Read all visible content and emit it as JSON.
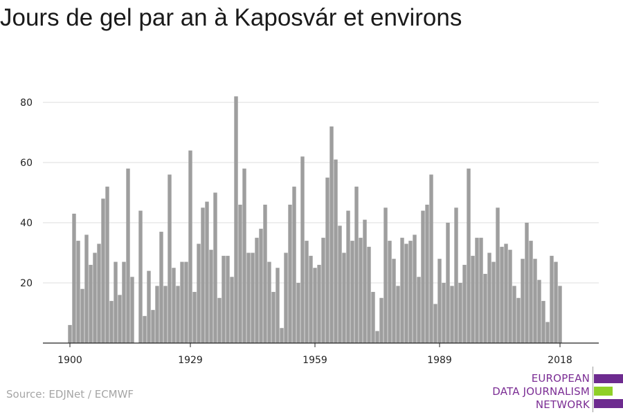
{
  "title": "Jours de gel par an à Kaposvár et environs",
  "source": "Source: EDJNet / ECMWF",
  "logo": {
    "lines": [
      "EUROPEAN",
      "DATA JOURNALISM",
      "NETWORK"
    ],
    "text_color": "#7b2d94",
    "bar_colors": [
      "#6d2b8f",
      "#8fd028",
      "#6d2b8f"
    ]
  },
  "colors": {
    "bar": "#9e9e9e",
    "grid": "#dedede",
    "axis": "#222222"
  },
  "chart_data": {
    "type": "bar",
    "title": "Jours de gel par an à Kaposvár et environs",
    "xlabel": "",
    "ylabel": "",
    "x_ticks": [
      1900,
      1929,
      1959,
      1989,
      2018
    ],
    "y_ticks": [
      20,
      40,
      60,
      80
    ],
    "ylim": [
      0,
      87
    ],
    "grid": true,
    "years": [
      1900,
      1901,
      1902,
      1903,
      1904,
      1905,
      1906,
      1907,
      1908,
      1909,
      1910,
      1911,
      1912,
      1913,
      1914,
      1915,
      1916,
      1917,
      1918,
      1919,
      1920,
      1921,
      1922,
      1923,
      1924,
      1925,
      1926,
      1927,
      1928,
      1929,
      1930,
      1931,
      1932,
      1933,
      1934,
      1935,
      1936,
      1937,
      1938,
      1939,
      1940,
      1941,
      1942,
      1943,
      1944,
      1945,
      1946,
      1947,
      1948,
      1949,
      1950,
      1951,
      1952,
      1953,
      1954,
      1955,
      1956,
      1957,
      1958,
      1959,
      1960,
      1961,
      1962,
      1963,
      1964,
      1965,
      1966,
      1967,
      1968,
      1969,
      1970,
      1971,
      1972,
      1973,
      1974,
      1975,
      1976,
      1977,
      1978,
      1979,
      1980,
      1981,
      1982,
      1983,
      1984,
      1985,
      1986,
      1987,
      1988,
      1989,
      1990,
      1991,
      1992,
      1993,
      1994,
      1995,
      1996,
      1997,
      1998,
      1999,
      2000,
      2001,
      2002,
      2003,
      2004,
      2005,
      2006,
      2007,
      2008,
      2009,
      2010,
      2011,
      2012,
      2013,
      2014,
      2015,
      2016,
      2017,
      2018
    ],
    "values": [
      6,
      43,
      34,
      18,
      36,
      26,
      30,
      33,
      48,
      52,
      14,
      27,
      16,
      27,
      58,
      22,
      0,
      44,
      9,
      24,
      11,
      19,
      37,
      19,
      56,
      25,
      19,
      27,
      27,
      64,
      17,
      33,
      45,
      47,
      31,
      50,
      15,
      29,
      29,
      22,
      82,
      46,
      58,
      30,
      30,
      35,
      38,
      46,
      27,
      17,
      25,
      5,
      30,
      46,
      52,
      20,
      62,
      34,
      29,
      25,
      26,
      35,
      55,
      72,
      61,
      39,
      30,
      44,
      34,
      52,
      35,
      41,
      32,
      17,
      4,
      15,
      45,
      34,
      28,
      19,
      35,
      33,
      34,
      36,
      22,
      44,
      46,
      56,
      13,
      28,
      20,
      40,
      19,
      45,
      20,
      26,
      58,
      29,
      35,
      35,
      23,
      30,
      27,
      45,
      32,
      33,
      31,
      19,
      15,
      28,
      40,
      34,
      28,
      21,
      14,
      7,
      29,
      27,
      19
    ]
  }
}
